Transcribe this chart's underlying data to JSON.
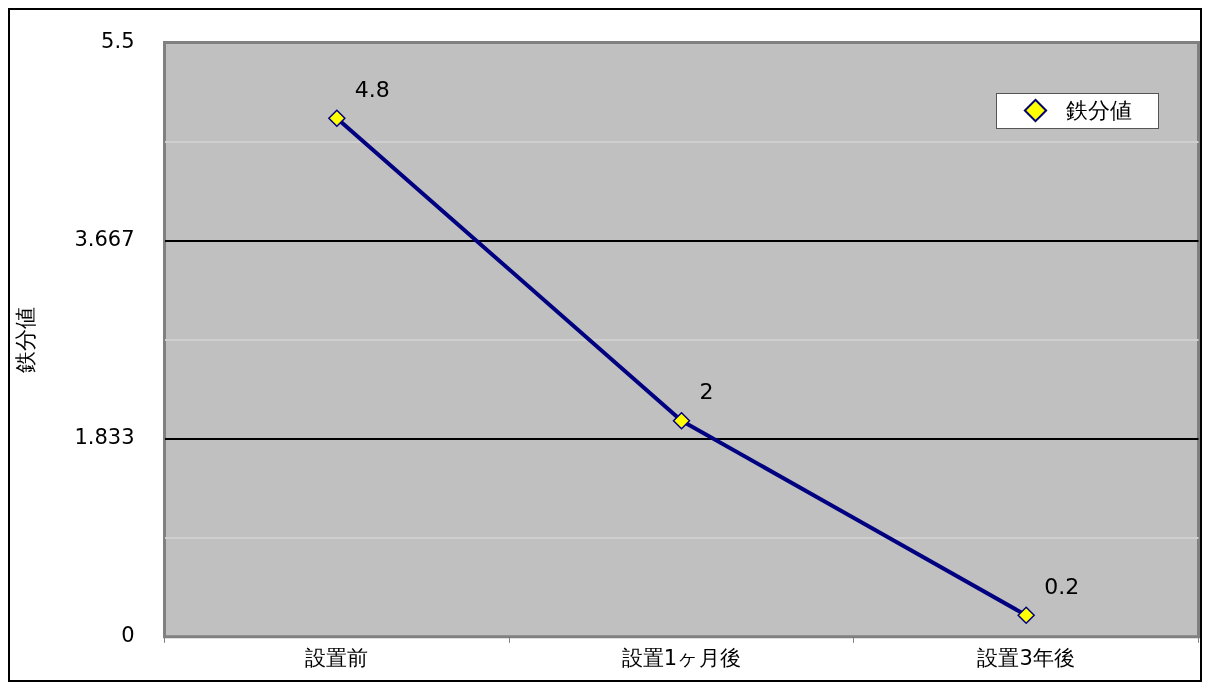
{
  "chart_data": {
    "type": "line",
    "ylabel": "鉄分値",
    "categories": [
      "設置前",
      "設置1ヶ月後",
      "設置3年後"
    ],
    "series": [
      {
        "name": "鉄分値",
        "color": "#000080",
        "values": [
          4.8,
          2,
          0.2
        ]
      }
    ],
    "ylim": [
      0,
      5.5
    ],
    "yticks": [
      0,
      {
        "value": 0.917,
        "label": null
      },
      1.833,
      {
        "value": 2.75,
        "label": null
      },
      3.667,
      {
        "value": 4.583,
        "label": null
      },
      5.5
    ],
    "grid": "y",
    "legend": "top right",
    "marker": "diamond",
    "line_style": "solid",
    "data_labels": true
  }
}
